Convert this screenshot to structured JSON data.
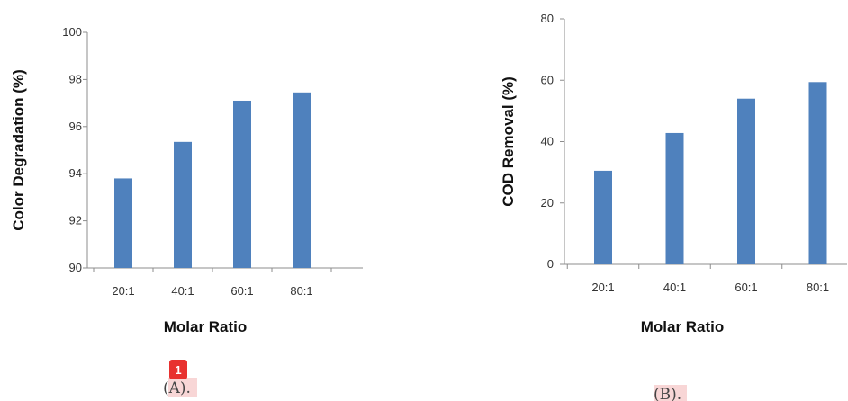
{
  "chart_data": [
    {
      "type": "bar",
      "categories": [
        "20:1",
        "40:1",
        "60:1",
        "80:1"
      ],
      "values": [
        93.8,
        95.35,
        97.1,
        97.45
      ],
      "xlabel": "Molar Ratio",
      "ylabel": "Color Degradation (%)",
      "ylim": [
        90,
        100
      ],
      "yticks": [
        90,
        92,
        94,
        96,
        98,
        100
      ],
      "grid": false,
      "bar_color": "#4f81bd",
      "caption": "(A)."
    },
    {
      "type": "bar",
      "categories": [
        "20:1",
        "40:1",
        "60:1",
        "80:1"
      ],
      "values": [
        30.5,
        42.8,
        54.0,
        59.4
      ],
      "xlabel": "Molar Ratio",
      "ylabel": "COD Removal (%)",
      "ylim": [
        0,
        80
      ],
      "yticks": [
        0,
        20,
        40,
        60,
        80
      ],
      "grid": false,
      "bar_color": "#4f81bd",
      "caption": "(B)."
    }
  ],
  "badge": "1"
}
